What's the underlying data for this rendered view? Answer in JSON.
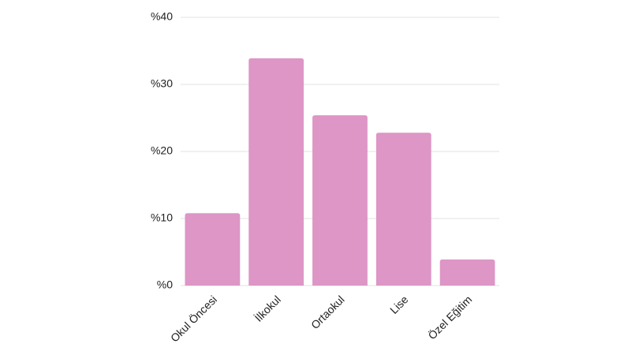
{
  "chart_data": {
    "type": "bar",
    "categories": [
      "Okul Öncesi",
      "İlkokul",
      "Ortaokul",
      "Lise",
      "Özel Eğitim"
    ],
    "values": [
      10.8,
      33.9,
      25.4,
      22.8,
      3.9
    ],
    "color": "#dd96c6",
    "ylim": [
      0,
      40
    ],
    "yticks": [
      {
        "value": 0,
        "label": "%0"
      },
      {
        "value": 10,
        "label": "%10"
      },
      {
        "value": 20,
        "label": "%20"
      },
      {
        "value": 30,
        "label": "%30"
      },
      {
        "value": 40,
        "label": "%40"
      }
    ],
    "grid": true
  }
}
